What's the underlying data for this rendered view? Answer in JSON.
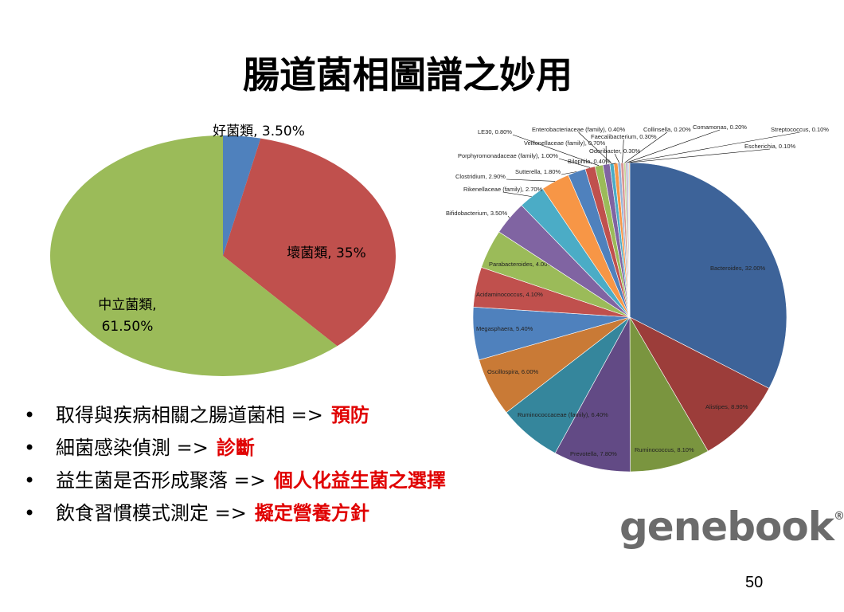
{
  "title": "腸道菌相圖譜之妙用",
  "chart_data": [
    {
      "type": "pie",
      "values": [
        3.5,
        35,
        61.5
      ],
      "value_labels": [
        "好菌類, 3.50%",
        "壞菌類, 35%",
        "中立菌類, 61.50%"
      ],
      "colors": [
        "#4f81bd",
        "#c0504d",
        "#9bbb59"
      ]
    },
    {
      "type": "pie",
      "values": [
        32.0,
        8.9,
        8.1,
        7.8,
        6.4,
        6.0,
        5.4,
        4.1,
        4.0,
        3.5,
        2.7,
        2.9,
        1.8,
        1.0,
        0.8,
        0.7,
        0.4,
        0.4,
        0.3,
        0.3,
        0.2,
        0.2,
        0.1,
        0.1
      ],
      "value_labels": [
        "Bacteroides, 32.00%",
        "Alistipes, 8.90%",
        "Ruminococcus, 8.10%",
        "Prevotella, 7.80%",
        "Ruminococcaceae (family), 6.40%",
        "Oscillospira, 6.00%",
        "Megasphaera, 5.40%",
        "Acidaminococcus, 4.10%",
        "Parabacteroides, 4.00%",
        "Bifidobacterium, 3.50%",
        "Rikenellaceae (family), 2.70%",
        "Clostridium, 2.90%",
        "Sutterella, 1.80%",
        "Porphyromonadaceae (family), 1.00%",
        "LE30, 0.80%",
        "Veillonellaceae (family), 0.70%",
        "Enterobacteriaceae (family), 0.40%",
        "Bilophila, 0.40%",
        "Odoribacter, 0.30%",
        "Faecalibacterium, 0.30%",
        "Collinsella, 0.20%",
        "Comamonas, 0.20%",
        "Streptococcus, 0.10%",
        "Escherichia, 0.10%"
      ],
      "colors": [
        "#3d6399",
        "#9c3d3a",
        "#7a953f",
        "#624a85",
        "#35869c",
        "#c97a36",
        "#4f81bd",
        "#c0504d",
        "#9bbb59",
        "#8064a2",
        "#4bacc6",
        "#f79646",
        "#4f81bd",
        "#c0504d",
        "#9bbb59",
        "#8064a2",
        "#4bacc6",
        "#f79646",
        "#95b3d7",
        "#d99694",
        "#c3d69b",
        "#b3a2c7",
        "#93cddd",
        "#fac090"
      ]
    }
  ],
  "bullets": [
    {
      "text": "取得與疾病相關之腸道菌相 =>",
      "highlight": "預防"
    },
    {
      "text": "細菌感染偵測 =>",
      "highlight": "診斷"
    },
    {
      "text": "益生菌是否形成聚落 =>",
      "highlight": "個人化益生菌之選擇"
    },
    {
      "text": "飲食習慣模式測定 =>",
      "highlight": "擬定營養方針"
    }
  ],
  "logo": "genebook",
  "logo_mark": "®",
  "page_number": "50"
}
